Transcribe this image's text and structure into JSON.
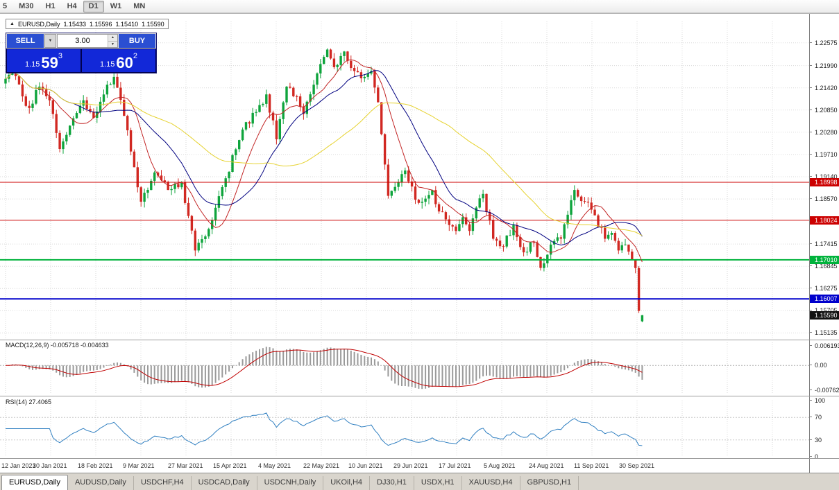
{
  "toolbar": {
    "timeframes": [
      "5",
      "M30",
      "H1",
      "H4",
      "D1",
      "W1",
      "MN"
    ]
  },
  "chart_header": {
    "collapse_icon": "▲",
    "symbol": "EURUSD,Daily",
    "open": "1.15433",
    "high": "1.15596",
    "low": "1.15410",
    "close": "1.15590"
  },
  "icons": {
    "chevron_down": "▼",
    "spin_up": "▲",
    "spin_down": "▼"
  },
  "trade_panel": {
    "sell_label": "SELL",
    "buy_label": "BUY",
    "volume": "3.00",
    "sell_price": {
      "prefix": "1.15",
      "big": "59",
      "sup": "3"
    },
    "buy_price": {
      "prefix": "1.15",
      "big": "60",
      "sup": "2"
    },
    "colors": {
      "button_bg": "#2b4fd2",
      "price_bg": "#1228d8",
      "panel_bg": "#00004d"
    }
  },
  "indicators": {
    "macd_label": "MACD(12,26,9) -0.005718 -0.004633",
    "rsi_label": "RSI(14) 27.4065"
  },
  "tabs": {
    "items": [
      "EURUSD,Daily",
      "AUDUSD,Daily",
      "USDCHF,H4",
      "USDCAD,Daily",
      "USDCNH,Daily",
      "UKOil,H4",
      "DJ30,H1",
      "USDX,H1",
      "XAUUSD,H4",
      "GBPUSD,H1"
    ],
    "active": "EURUSD,Daily"
  },
  "chart_data": {
    "type": "candlestick",
    "symbol": "EURUSD",
    "timeframe": "Daily",
    "bars": 189,
    "price_range": {
      "min": 1.15,
      "max": 1.2312
    },
    "background": "#ffffff",
    "grid": "on",
    "grid_color": "#dadada",
    "up_color": "#0ea43c",
    "down_color": "#d12822",
    "waypoints": [
      [
        0,
        1.2165
      ],
      [
        2,
        1.2205
      ],
      [
        5,
        1.212
      ],
      [
        7,
        1.209
      ],
      [
        10,
        1.2145
      ],
      [
        13,
        1.211
      ],
      [
        16,
        1.1985
      ],
      [
        19,
        1.2045
      ],
      [
        23,
        1.211
      ],
      [
        26,
        1.2065
      ],
      [
        30,
        1.215
      ],
      [
        32,
        1.217
      ],
      [
        35,
        1.207
      ],
      [
        40,
        1.185
      ],
      [
        44,
        1.1925
      ],
      [
        48,
        1.188
      ],
      [
        52,
        1.19
      ],
      [
        56,
        1.1725
      ],
      [
        60,
        1.178
      ],
      [
        65,
        1.191
      ],
      [
        70,
        1.2035
      ],
      [
        74,
        1.208
      ],
      [
        77,
        1.2125
      ],
      [
        80,
        1.201
      ],
      [
        83,
        1.2145
      ],
      [
        86,
        1.212
      ],
      [
        88,
        1.2075
      ],
      [
        91,
        1.215
      ],
      [
        95,
        1.224
      ],
      [
        97,
        1.2195
      ],
      [
        100,
        1.2235
      ],
      [
        103,
        1.2185
      ],
      [
        106,
        1.217
      ],
      [
        108,
        1.2185
      ],
      [
        110,
        1.2105
      ],
      [
        113,
        1.1865
      ],
      [
        116,
        1.19
      ],
      [
        118,
        1.193
      ],
      [
        121,
        1.1855
      ],
      [
        123,
        1.185
      ],
      [
        126,
        1.188
      ],
      [
        128,
        1.1825
      ],
      [
        131,
        1.179
      ],
      [
        133,
        1.1775
      ],
      [
        135,
        1.181
      ],
      [
        137,
        1.1775
      ],
      [
        139,
        1.1835
      ],
      [
        141,
        1.187
      ],
      [
        144,
        1.1755
      ],
      [
        147,
        1.1735
      ],
      [
        150,
        1.179
      ],
      [
        153,
        1.172
      ],
      [
        156,
        1.1745
      ],
      [
        158,
        1.168
      ],
      [
        161,
        1.174
      ],
      [
        164,
        1.1755
      ],
      [
        168,
        1.188
      ],
      [
        171,
        1.185
      ],
      [
        174,
        1.1815
      ],
      [
        177,
        1.1755
      ],
      [
        179,
        1.177
      ],
      [
        181,
        1.1725
      ],
      [
        183,
        1.174
      ],
      [
        185,
        1.17
      ],
      [
        186,
        1.168
      ],
      [
        187,
        1.157
      ],
      [
        188,
        1.1559
      ]
    ],
    "last_bar": {
      "open": 1.15433,
      "high": 1.15596,
      "low": 1.1541,
      "close": 1.1559
    },
    "levels": [
      {
        "value": 1.18998,
        "label": "1.18998",
        "color": "#cc0000",
        "width": 1
      },
      {
        "value": 1.18024,
        "label": "1.18024",
        "color": "#cc0000",
        "width": 1
      },
      {
        "value": 1.1701,
        "label": "1.17010",
        "color": "#00b33c",
        "width": 2
      },
      {
        "value": 1.16007,
        "label": "1.16007",
        "color": "#0000cc",
        "width": 2
      }
    ],
    "current_price": {
      "value": 1.1559,
      "label": "1.15590",
      "bg": "#111111"
    },
    "moving_averages": [
      {
        "period": 10,
        "color": "#c22525"
      },
      {
        "period": 21,
        "color": "#000080"
      },
      {
        "period": 50,
        "color": "#e6d22e"
      }
    ],
    "price_axis_labels": [
      "1.22575",
      "1.21990",
      "1.21420",
      "1.20850",
      "1.20280",
      "1.19710",
      "1.19140",
      "1.18570",
      "1.17415",
      "1.16845",
      "1.16275",
      "1.15705",
      "1.15135"
    ],
    "x_axis_labels": [
      "12 Jan 2021",
      "30 Jan 2021",
      "18 Feb 2021",
      "9 Mar 2021",
      "27 Mar 2021",
      "15 Apr 2021",
      "4 May 2021",
      "22 May 2021",
      "10 Jun 2021",
      "29 Jun 2021",
      "17 Jul 2021",
      "5 Aug 2021",
      "24 Aug 2021",
      "11 Sep 2021",
      "30 Sep 2021"
    ],
    "macd": {
      "label": "MACD(12,26,9) -0.005718 -0.004633",
      "fast": 12,
      "slow": 26,
      "signal": 9,
      "current_macd": -0.005718,
      "current_signal": -0.004633,
      "range": {
        "min": -0.009,
        "max": 0.0072
      },
      "scale_labels": [
        {
          "text": "0.006193",
          "value": 0.006193
        },
        {
          "text": "0.00",
          "value": 0
        },
        {
          "text": "-0.00762",
          "value": -0.00762
        }
      ],
      "hist_color": "#9a9a9a",
      "signal_color": "#c00000"
    },
    "rsi": {
      "label": "RSI(14) 27.4065",
      "period": 14,
      "current": 27.4065,
      "levels": [
        70,
        30
      ],
      "scale_labels": [
        {
          "text": "100",
          "value": 100
        },
        {
          "text": "70",
          "value": 70
        },
        {
          "text": "30",
          "value": 30
        },
        {
          "text": "0",
          "value": 0
        }
      ],
      "color": "#2f7fc1"
    }
  }
}
